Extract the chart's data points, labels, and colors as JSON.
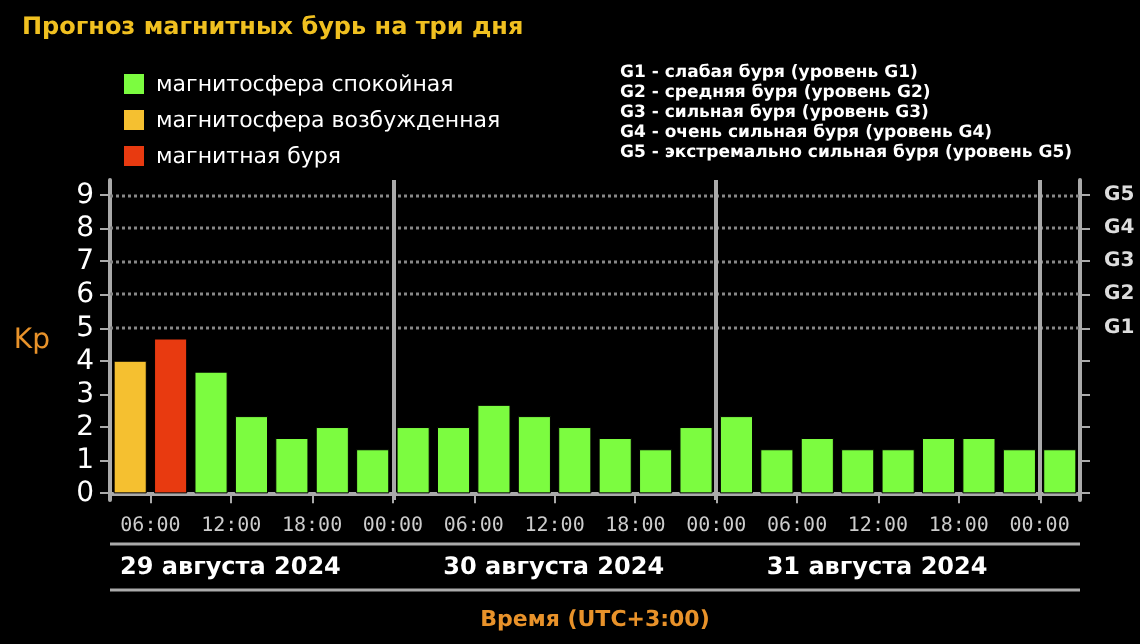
{
  "chart_data": {
    "type": "bar",
    "title": "Прогноз магнитных бурь на три дня",
    "xlabel": "Время (UTC+3:00)",
    "ylabel": "Kp",
    "x": [
      "2024-08-29T04:30",
      "2024-08-29T07:30",
      "2024-08-29T10:30",
      "2024-08-29T13:30",
      "2024-08-29T16:30",
      "2024-08-29T19:30",
      "2024-08-29T22:30",
      "2024-08-30T01:30",
      "2024-08-30T04:30",
      "2024-08-30T07:30",
      "2024-08-30T10:30",
      "2024-08-30T13:30",
      "2024-08-30T16:30",
      "2024-08-30T19:30",
      "2024-08-30T22:30",
      "2024-08-31T01:30",
      "2024-08-31T04:30",
      "2024-08-31T07:30",
      "2024-08-31T10:30",
      "2024-08-31T13:30",
      "2024-08-31T16:30",
      "2024-08-31T19:30",
      "2024-08-31T22:30",
      "2024-09-01T01:30"
    ],
    "stacked": true,
    "series": [
      {
        "name": "магнитосфера спокойная",
        "color": "#7cfc40",
        "values": [
          null,
          null,
          3.67,
          2.33,
          1.67,
          2.0,
          1.33,
          2.0,
          2.0,
          2.67,
          2.33,
          2.0,
          1.67,
          1.33,
          2.0,
          2.33,
          1.33,
          1.67,
          1.33,
          1.33,
          1.67,
          1.67,
          1.33,
          1.33
        ]
      },
      {
        "name": "магнитосфера возбужденная",
        "color": "#f5c030",
        "values": [
          4.0,
          null,
          null,
          null,
          null,
          null,
          null,
          null,
          null,
          null,
          null,
          null,
          null,
          null,
          null,
          null,
          null,
          null,
          null,
          null,
          null,
          null,
          null,
          null
        ]
      },
      {
        "name": "магнитная буря",
        "color": "#e83a10",
        "values": [
          null,
          4.67,
          null,
          null,
          null,
          null,
          null,
          null,
          null,
          null,
          null,
          null,
          null,
          null,
          null,
          null,
          null,
          null,
          null,
          null,
          null,
          null,
          null,
          null
        ]
      }
    ],
    "xlim": [
      "2024-08-29T03:00",
      "2024-09-01T03:00"
    ],
    "xticks": [
      {
        "value": "2024-08-29T06:00",
        "label": "06:00"
      },
      {
        "value": "2024-08-29T12:00",
        "label": "12:00"
      },
      {
        "value": "2024-08-29T18:00",
        "label": "18:00"
      },
      {
        "value": "2024-08-30T00:00",
        "label": "00:00"
      },
      {
        "value": "2024-08-30T06:00",
        "label": "06:00"
      },
      {
        "value": "2024-08-30T12:00",
        "label": "12:00"
      },
      {
        "value": "2024-08-30T18:00",
        "label": "18:00"
      },
      {
        "value": "2024-08-31T00:00",
        "label": "00:00"
      },
      {
        "value": "2024-08-31T06:00",
        "label": "06:00"
      },
      {
        "value": "2024-08-31T12:00",
        "label": "12:00"
      },
      {
        "value": "2024-08-31T18:00",
        "label": "18:00"
      },
      {
        "value": "2024-09-01T00:00",
        "label": "00:00"
      }
    ],
    "ylim": [
      -0.2,
      9.45
    ],
    "yticks": [
      0,
      1,
      2,
      3,
      4,
      5,
      6,
      7,
      8,
      9
    ],
    "ref_lines": [
      {
        "axis": "y",
        "value": 5,
        "label": "G1",
        "color": "#888888",
        "line_style": "dotted"
      },
      {
        "axis": "y",
        "value": 6,
        "label": "G2",
        "color": "#888888",
        "line_style": "dotted"
      },
      {
        "axis": "y",
        "value": 7,
        "label": "G3",
        "color": "#888888",
        "line_style": "dotted"
      },
      {
        "axis": "y",
        "value": 8,
        "label": "G4",
        "color": "#888888",
        "line_style": "dotted"
      },
      {
        "axis": "y",
        "value": 9,
        "label": "G5",
        "color": "#888888",
        "line_style": "dotted"
      },
      {
        "axis": "x",
        "value": "2024-08-30T00:00",
        "color": "#aaaaaa",
        "line_style": "solid"
      },
      {
        "axis": "x",
        "value": "2024-08-31T00:00",
        "color": "#aaaaaa",
        "line_style": "solid"
      },
      {
        "axis": "x",
        "value": "2024-09-01T00:00",
        "color": "#aaaaaa",
        "line_style": "solid"
      }
    ],
    "annotations": [
      "29 августа 2024",
      "30 августа 2024",
      "31 августа 2024",
      "G1 - слабая буря (уровень G1)",
      "G2 - средняя буря (уровень G2)",
      "G3 - сильная буря (уровень G3)",
      "G4 - очень сильная буря (уровень G4)",
      "G5 - экстремально сильная буря (уровень G5)"
    ],
    "legend": "top left",
    "grid": false
  }
}
